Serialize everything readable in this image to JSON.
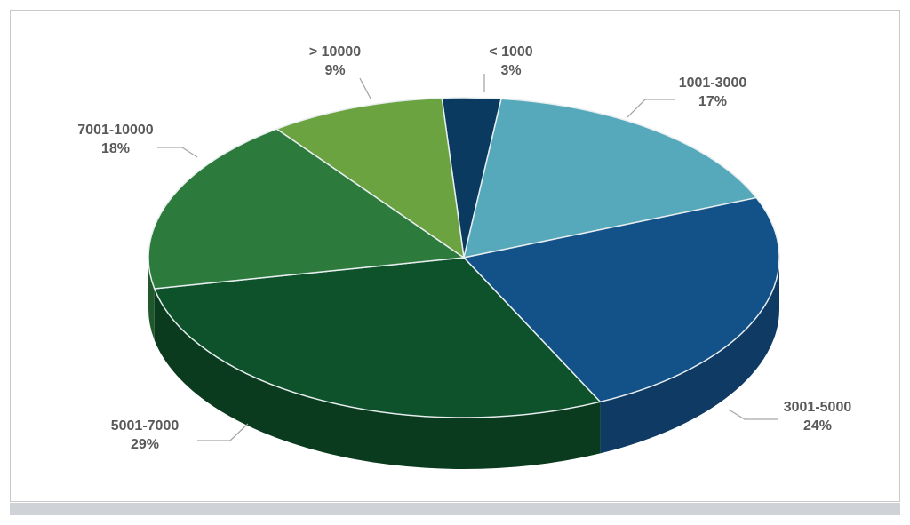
{
  "chart_data": {
    "type": "pie",
    "style": "3d",
    "title": "",
    "slices": [
      {
        "label": "< 1000",
        "value": 3,
        "value_label": "3%",
        "color": "#0b3a60"
      },
      {
        "label": "1001-3000",
        "value": 17,
        "value_label": "17%",
        "color": "#56a8bb"
      },
      {
        "label": "3001-5000",
        "value": 24,
        "value_label": "24%",
        "color": "#135189"
      },
      {
        "label": "5001-7000",
        "value": 29,
        "value_label": "29%",
        "color": "#0e522b"
      },
      {
        "label": "7001-10000",
        "value": 18,
        "value_label": "18%",
        "color": "#2c7a3c"
      },
      {
        "label": "> 10000",
        "value": 9,
        "value_label": "9%",
        "color": "#6ca341"
      }
    ],
    "legend": "none",
    "data_labels": "outside-with-leader-lines"
  }
}
